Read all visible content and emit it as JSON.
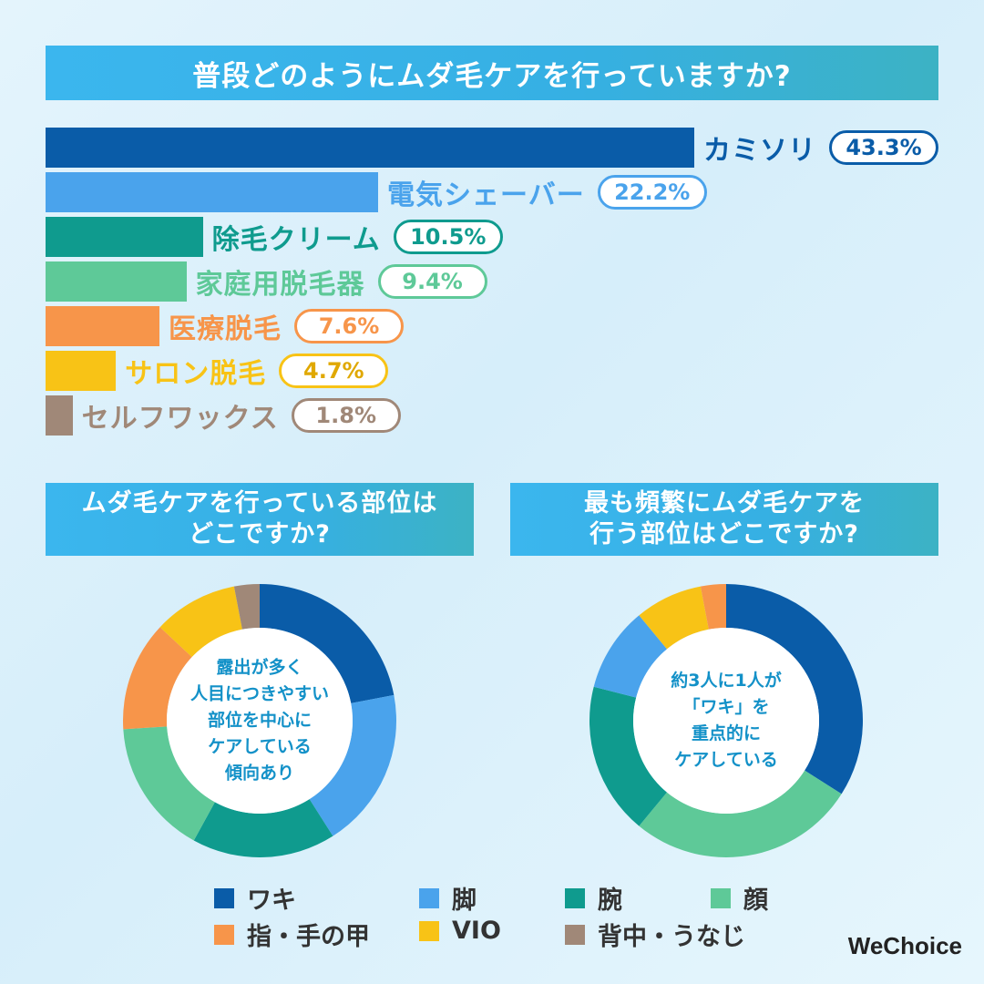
{
  "colors": {
    "razor": "#0a5ca8",
    "shaver": "#4aa3ec",
    "cream": "#0f9b8e",
    "home_device": "#5ec998",
    "medical": "#f7954a",
    "salon": "#f8c316",
    "wax": "#a08878"
  },
  "titles": {
    "top": "普段どのようにムダ毛ケアを行っていますか?",
    "left": [
      "ムダ毛ケアを行っている部位は",
      "どこですか?"
    ],
    "right": [
      "最も頻繁にムダ毛ケアを",
      "行う部位はどこですか?"
    ]
  },
  "chart_data": [
    {
      "type": "bar",
      "categories": [
        "カミソリ",
        "電気シェーバー",
        "除毛クリーム",
        "家庭用脱毛器",
        "医療脱毛",
        "サロン脱毛",
        "セルフワックス"
      ],
      "values": [
        43.3,
        22.2,
        10.5,
        9.4,
        7.6,
        4.7,
        1.8
      ],
      "value_labels": [
        "43.3%",
        "22.2%",
        "10.5%",
        "9.4%",
        "7.6%",
        "4.7%",
        "1.8%"
      ],
      "colors": [
        "#0a5ca8",
        "#4aa3ec",
        "#0f9b8e",
        "#5ec998",
        "#f7954a",
        "#f8c316",
        "#a08878"
      ]
    },
    {
      "type": "pie",
      "categories": [
        "ワキ",
        "脚",
        "腕",
        "顔",
        "指・手の甲",
        "VIO",
        "背中・うなじ"
      ],
      "values": [
        22,
        19,
        17,
        16,
        13,
        10,
        3
      ],
      "colors": [
        "#0a5ca8",
        "#4aa3ec",
        "#0f9b8e",
        "#5ec998",
        "#f7954a",
        "#f8c316",
        "#a08878"
      ],
      "center_text": [
        "露出が多く",
        "人目につきやすい",
        "部位を中心に",
        "ケアしている",
        "傾向あり"
      ]
    },
    {
      "type": "pie",
      "categories": [
        "ワキ",
        "脚",
        "腕",
        "顔",
        "指・手の甲",
        "VIO",
        "背中・うなじ"
      ],
      "values": [
        34,
        27,
        18,
        10,
        8,
        3,
        0
      ],
      "colors": [
        "#0a5ca8",
        "#5ec998",
        "#0f9b8e",
        "#4aa3ec",
        "#f8c316",
        "#f7954a",
        "#a08878"
      ],
      "series_order": [
        "ワキ",
        "顔",
        "腕",
        "脚",
        "VIO",
        "指・手の甲",
        "背中・うなじ"
      ],
      "center_text": [
        "約3人に1人が",
        "「ワキ」を",
        "重点的に",
        "ケアしている"
      ]
    }
  ],
  "legend": [
    {
      "label": "ワキ",
      "color": "#0a5ca8"
    },
    {
      "label": "脚",
      "color": "#4aa3ec"
    },
    {
      "label": "腕",
      "color": "#0f9b8e"
    },
    {
      "label": "顔",
      "color": "#5ec998"
    },
    {
      "label": "指・手の甲",
      "color": "#f7954a"
    },
    {
      "label": "VIO",
      "color": "#f8c316"
    },
    {
      "label": "背中・うなじ",
      "color": "#a08878"
    }
  ],
  "logo": "WeChoice"
}
